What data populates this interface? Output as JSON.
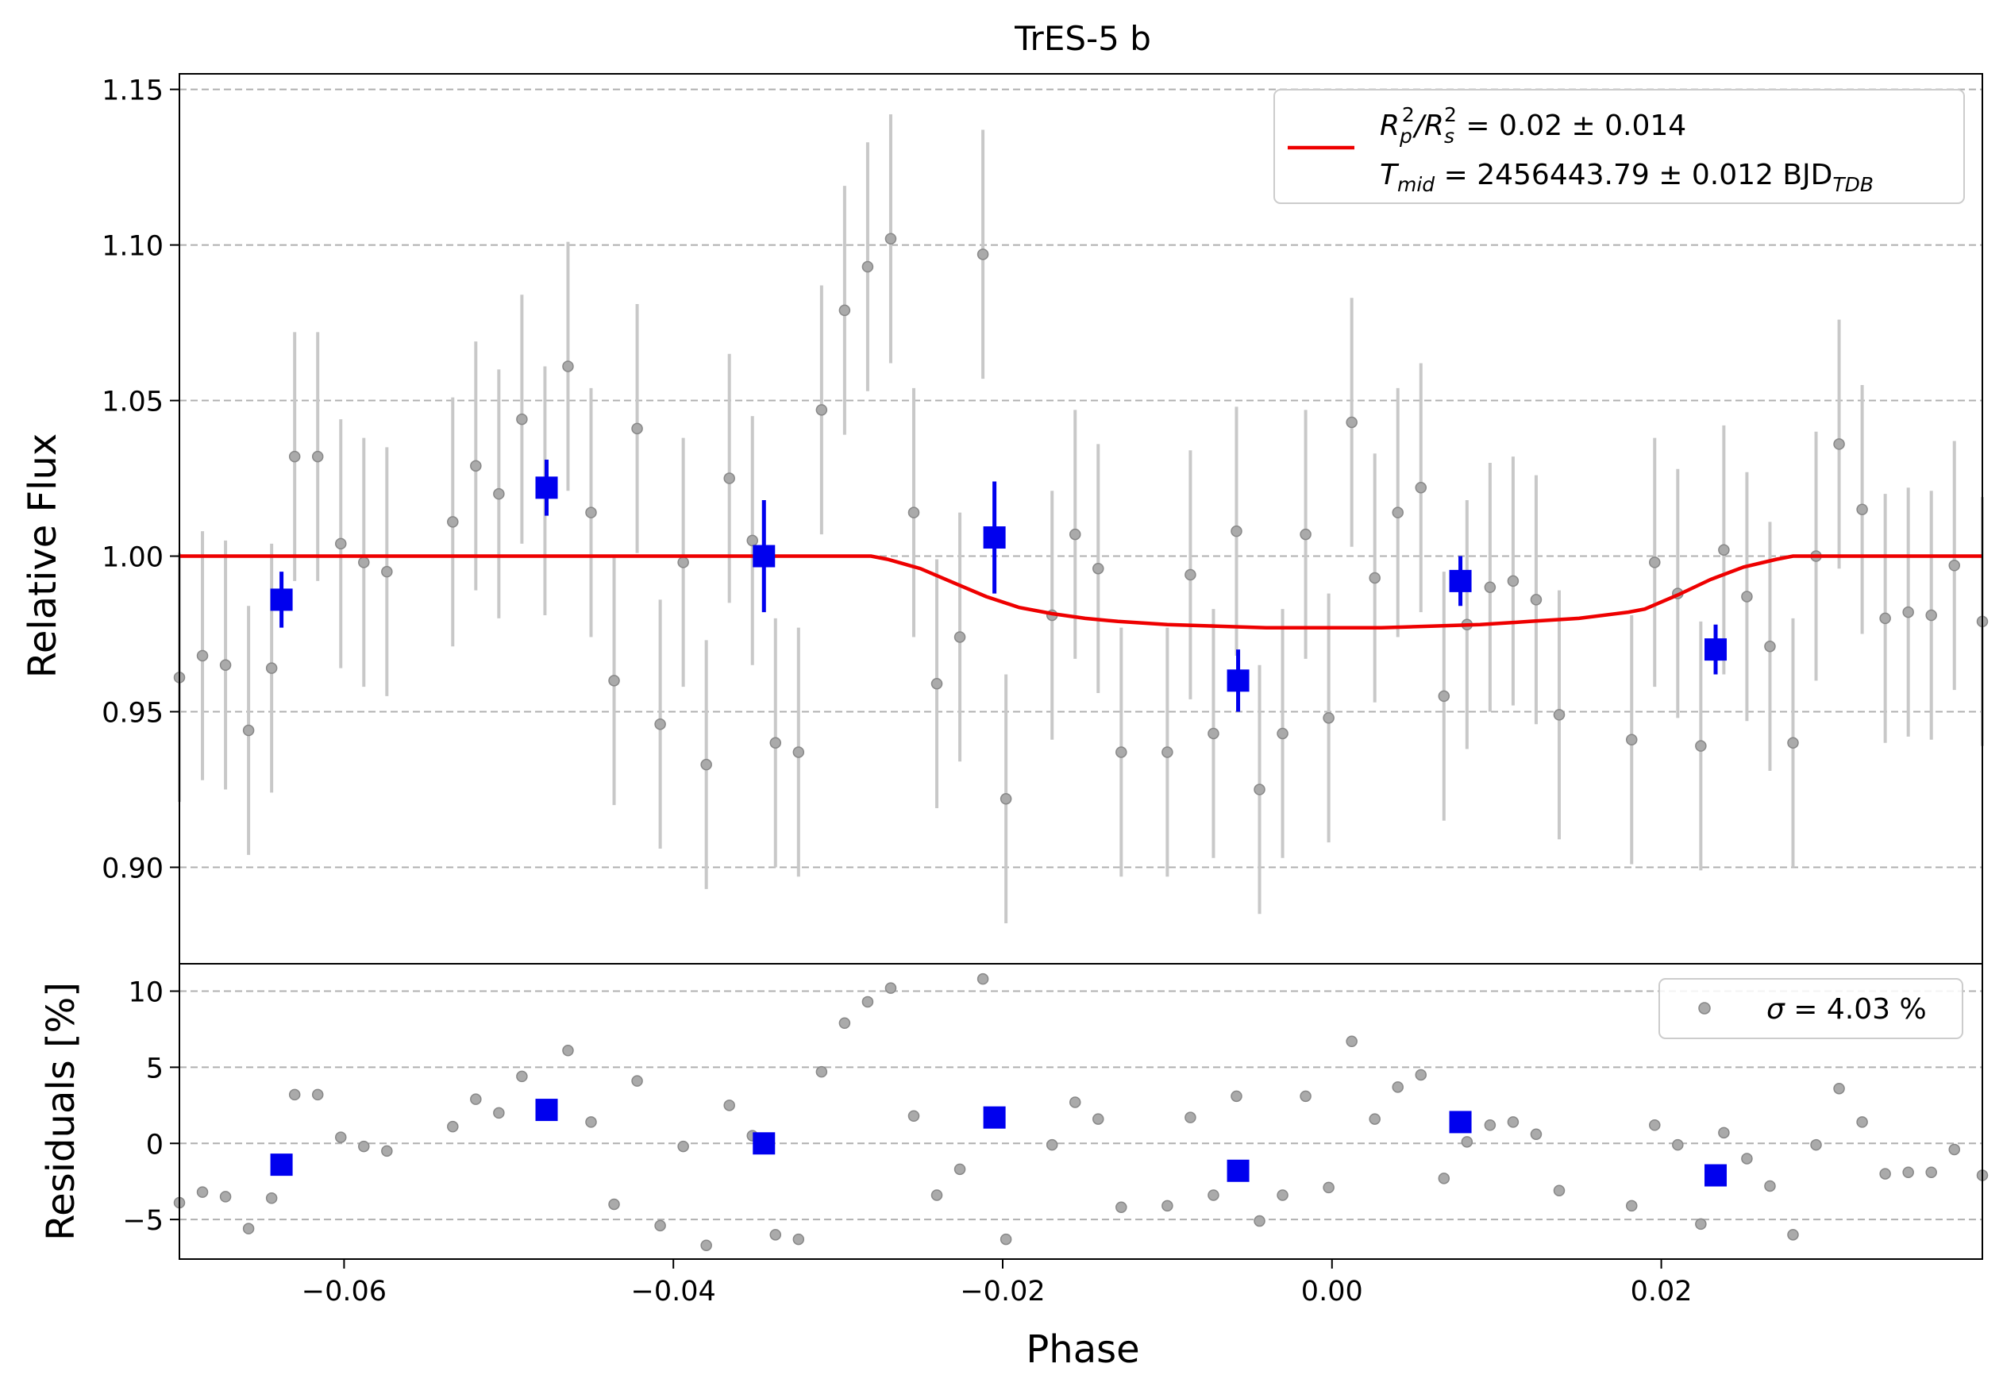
{
  "chart_data": {
    "type": "scatter",
    "title": "TrES-5 b",
    "xlabel": "Phase",
    "xlim": [
      -0.07,
      0.0395
    ],
    "xticks": [
      -0.06,
      -0.04,
      -0.02,
      0.0,
      0.02
    ],
    "xtick_labels": [
      "−0.06",
      "−0.04",
      "−0.02",
      "0.00",
      "0.02"
    ],
    "grid": "y-dashed",
    "top_panel": {
      "ylabel": "Relative Flux",
      "ylim": [
        0.869,
        1.155
      ],
      "yticks": [
        0.9,
        0.95,
        1.0,
        1.05,
        1.1,
        1.15
      ],
      "ytick_labels": [
        "0.90",
        "0.95",
        "1.00",
        "1.05",
        "1.10",
        "1.15"
      ],
      "legend": {
        "placement": "top-right",
        "line1_pre": "R",
        "line1_sub1": "p",
        "line1_sup1": "2",
        "line1_mid": "/R",
        "line1_sub2": "s",
        "line1_sup2": "2",
        "line1_post": " = 0.02 ± 0.014",
        "line2_pre": "T",
        "line2_sub1": "mid",
        "line2_post": " = 2456443.79 ± 0.012 BJD",
        "line2_sub2": "TDB"
      },
      "raw_points": {
        "color": "#888888",
        "error_color": "#c8c8c8",
        "error": 0.04,
        "x": [
          -0.07,
          -0.0686,
          -0.0672,
          -0.0658,
          -0.0644,
          -0.063,
          -0.0616,
          -0.0602,
          -0.0588,
          -0.0574,
          -0.0534,
          -0.052,
          -0.0506,
          -0.0492,
          -0.0478,
          -0.0464,
          -0.045,
          -0.0436,
          -0.0422,
          -0.0408,
          -0.0394,
          -0.038,
          -0.0366,
          -0.0352,
          -0.0338,
          -0.0324,
          -0.031,
          -0.0296,
          -0.0282,
          -0.0268,
          -0.0254,
          -0.024,
          -0.0226,
          -0.0212,
          -0.0198,
          -0.017,
          -0.0156,
          -0.0142,
          -0.0128,
          -0.01,
          -0.0086,
          -0.0072,
          -0.0058,
          -0.0044,
          -0.003,
          -0.0016,
          -0.0002,
          0.0012,
          0.0026,
          0.004,
          0.0054,
          0.0068,
          0.0082,
          0.0096,
          0.011,
          0.0124,
          0.0138,
          0.0182,
          0.0196,
          0.021,
          0.0224,
          0.0238,
          0.0252,
          0.0266,
          0.028,
          0.0294,
          0.0308,
          0.0322,
          0.0336,
          0.035,
          0.0364,
          0.0378,
          0.0395
        ],
        "y": [
          0.961,
          0.968,
          0.965,
          0.944,
          0.964,
          1.032,
          1.032,
          1.004,
          0.998,
          0.995,
          1.011,
          1.029,
          1.02,
          1.044,
          1.021,
          1.061,
          1.014,
          0.96,
          1.041,
          0.946,
          0.998,
          0.933,
          1.025,
          1.005,
          0.94,
          0.937,
          1.047,
          1.079,
          1.093,
          1.102,
          1.014,
          0.959,
          0.974,
          1.097,
          0.922,
          0.981,
          1.007,
          0.996,
          0.937,
          0.937,
          0.994,
          0.943,
          1.008,
          0.925,
          0.943,
          1.007,
          0.948,
          1.043,
          0.993,
          1.014,
          1.022,
          0.955,
          0.978,
          0.99,
          0.992,
          0.986,
          0.949,
          0.941,
          0.998,
          0.988,
          0.939,
          1.002,
          0.987,
          0.971,
          0.94,
          1.0,
          1.036,
          1.015,
          0.98,
          0.982,
          0.981,
          0.997,
          0.979
        ]
      },
      "binned_points": {
        "color": "#0000ee",
        "x": [
          -0.0638,
          -0.0477,
          -0.0345,
          -0.0205,
          -0.0057,
          0.0078,
          0.0233
        ],
        "y": [
          0.986,
          1.022,
          1.0,
          1.006,
          0.96,
          0.992,
          0.97
        ],
        "error": [
          0.009,
          0.009,
          0.018,
          0.018,
          0.01,
          0.008,
          0.008
        ]
      },
      "model": {
        "color": "#ee0000",
        "x": [
          -0.07,
          -0.028,
          -0.027,
          -0.025,
          -0.023,
          -0.021,
          -0.019,
          -0.017,
          -0.015,
          -0.013,
          -0.01,
          -0.007,
          -0.004,
          -0.001,
          0.0,
          0.003,
          0.006,
          0.009,
          0.012,
          0.015,
          0.018,
          0.019,
          0.021,
          0.023,
          0.025,
          0.027,
          0.028,
          0.0395
        ],
        "y": [
          1.0,
          1.0,
          0.999,
          0.996,
          0.9915,
          0.987,
          0.9835,
          0.9815,
          0.98,
          0.979,
          0.978,
          0.9775,
          0.977,
          0.977,
          0.977,
          0.977,
          0.9775,
          0.978,
          0.979,
          0.98,
          0.982,
          0.983,
          0.9875,
          0.9925,
          0.9965,
          0.999,
          1.0,
          1.0
        ]
      }
    },
    "bottom_panel": {
      "ylabel": "Residuals [%]",
      "ylim": [
        -7.6,
        11.8
      ],
      "yticks": [
        -5,
        0,
        5,
        10
      ],
      "ytick_labels": [
        "−5",
        "0",
        "5",
        "10"
      ],
      "legend": {
        "placement": "top-right",
        "sigma_symbol": "σ",
        "label_post": " = 4.03 %"
      },
      "raw_points": {
        "color": "#888888",
        "x": [
          -0.07,
          -0.0686,
          -0.0672,
          -0.0658,
          -0.0644,
          -0.063,
          -0.0616,
          -0.0602,
          -0.0588,
          -0.0574,
          -0.0534,
          -0.052,
          -0.0506,
          -0.0492,
          -0.0478,
          -0.0464,
          -0.045,
          -0.0436,
          -0.0422,
          -0.0408,
          -0.0394,
          -0.038,
          -0.0366,
          -0.0352,
          -0.0338,
          -0.0324,
          -0.031,
          -0.0296,
          -0.0282,
          -0.0268,
          -0.0254,
          -0.024,
          -0.0226,
          -0.0212,
          -0.0198,
          -0.017,
          -0.0156,
          -0.0142,
          -0.0128,
          -0.01,
          -0.0086,
          -0.0072,
          -0.0058,
          -0.0044,
          -0.003,
          -0.0016,
          -0.0002,
          0.0012,
          0.0026,
          0.004,
          0.0054,
          0.0068,
          0.0082,
          0.0096,
          0.011,
          0.0124,
          0.0138,
          0.0182,
          0.0196,
          0.021,
          0.0224,
          0.0238,
          0.0252,
          0.0266,
          0.028,
          0.0294,
          0.0308,
          0.0322,
          0.0336,
          0.035,
          0.0364,
          0.0378,
          0.0395
        ],
        "y": [
          -3.9,
          -3.2,
          -3.5,
          -5.6,
          -3.6,
          3.2,
          3.2,
          0.4,
          -0.2,
          -0.5,
          1.1,
          2.9,
          2.0,
          4.4,
          2.1,
          6.1,
          1.4,
          -4.0,
          4.1,
          -5.4,
          -0.2,
          -6.7,
          2.5,
          0.5,
          -6.0,
          -6.3,
          4.7,
          7.9,
          9.3,
          10.2,
          1.8,
          -3.4,
          -1.7,
          10.8,
          -6.3,
          -0.1,
          2.7,
          1.6,
          -4.2,
          -4.1,
          1.7,
          -3.4,
          3.1,
          -5.1,
          -3.4,
          3.1,
          -2.9,
          6.7,
          1.6,
          3.7,
          4.5,
          -2.3,
          0.1,
          1.2,
          1.4,
          0.6,
          -3.1,
          -4.1,
          1.2,
          -0.1,
          -5.3,
          0.7,
          -1.0,
          -2.8,
          -6.0,
          -0.1,
          3.6,
          1.4,
          -2.0,
          -1.9,
          -1.9,
          -0.4,
          -2.1
        ]
      },
      "binned_points": {
        "color": "#0000ee",
        "x": [
          -0.0638,
          -0.0477,
          -0.0345,
          -0.0205,
          -0.0057,
          0.0078,
          0.0233
        ],
        "y": [
          -1.4,
          2.2,
          0.0,
          1.7,
          -1.8,
          1.4,
          -2.1
        ]
      }
    }
  }
}
